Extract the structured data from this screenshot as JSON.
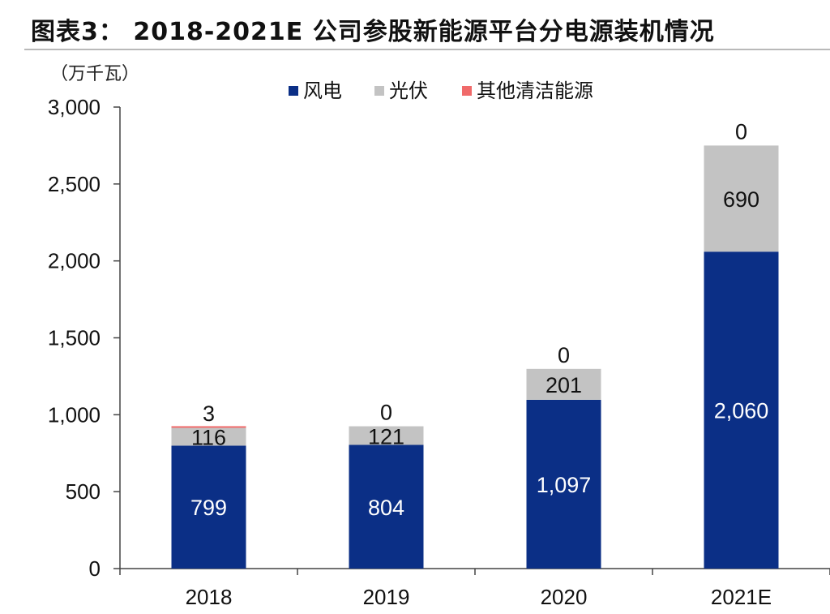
{
  "header": {
    "title": "图表3： 2018-2021E 公司参股新能源平台分电源装机情况"
  },
  "chart_data": {
    "type": "bar",
    "stacked": true,
    "unit_label": "（万千瓦）",
    "categories": [
      "2018",
      "2019",
      "2020",
      "2021E"
    ],
    "series": [
      {
        "name": "风电",
        "color": "#0b2f86",
        "values": [
          799,
          804,
          1097,
          2060
        ],
        "labels": [
          "799",
          "804",
          "1,097",
          "2,060"
        ]
      },
      {
        "name": "光伏",
        "color": "#c3c3c3",
        "values": [
          116,
          121,
          201,
          690
        ],
        "labels": [
          "116",
          "121",
          "201",
          "690"
        ]
      },
      {
        "name": "其他清洁能源",
        "color": "#f06a6a",
        "values": [
          3,
          0,
          0,
          0
        ],
        "labels": [
          "3",
          "0",
          "0",
          "0"
        ]
      }
    ],
    "yticks": [
      "0",
      "500",
      "1,000",
      "1,500",
      "2,000",
      "2,500",
      "3,000"
    ],
    "ylim": [
      0,
      3000
    ],
    "grid": false,
    "legend_position": "top"
  }
}
